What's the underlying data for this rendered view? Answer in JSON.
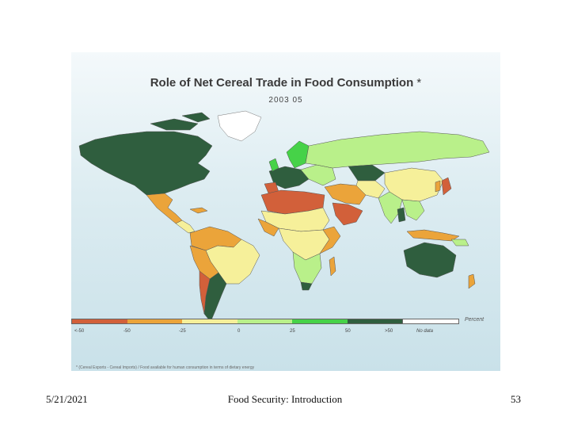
{
  "map": {
    "title": "Role of Net Cereal Trade in Food Consumption",
    "title_marker": "*",
    "subtitle": "2003 05",
    "legend": {
      "unit": "Percent",
      "categories": [
        {
          "label": "<-50",
          "color": "#d2603a"
        },
        {
          "label": "-50",
          "color": "#eba43a"
        },
        {
          "label": "-25",
          "color": "#f6f09a"
        },
        {
          "label": "0",
          "color": "#b9f08a"
        },
        {
          "label": "25",
          "color": "#46d248"
        },
        {
          "label": "50",
          "color": "#2f5e3e"
        },
        {
          "label": ">50",
          "color": "#ffffff"
        }
      ],
      "no_data_label": "No data"
    },
    "footnote": "* (Cereal Exports - Cereal Imports) / Food available for human consumption in terms of dietary energy",
    "ocean_color": "#cfe5ec"
  },
  "footer": {
    "date": "5/21/2021",
    "title": "Food Security: Introduction",
    "page": "53"
  }
}
